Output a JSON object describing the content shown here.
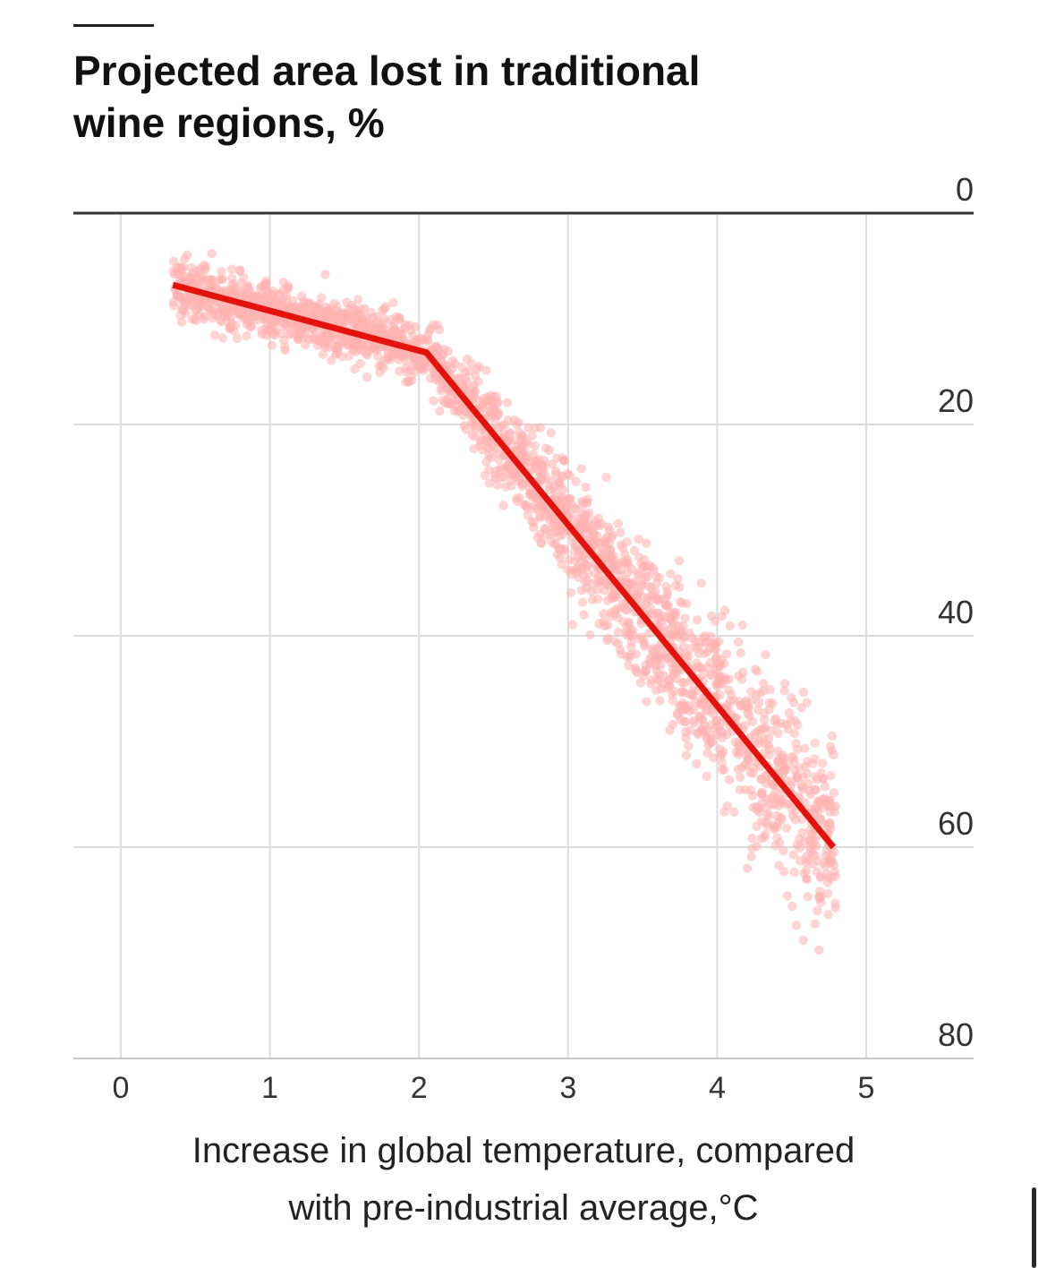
{
  "chart_data": {
    "type": "scatter",
    "title": "Projected area lost in traditional wine regions, %",
    "xlabel": "Increase in global temperature, compared with pre-industrial average,°C",
    "ylabel": "",
    "xlim": [
      -0.3,
      5.7
    ],
    "ylim": [
      0,
      80
    ],
    "y_axis": "inverted, labels on right",
    "xticks": [
      0,
      1,
      2,
      3,
      4,
      5
    ],
    "yticks": [
      0,
      20,
      40,
      60,
      80
    ],
    "grid": true,
    "series": [
      {
        "type": "line",
        "color": "#e3120b",
        "x": [
          0.35,
          2.05,
          4.78
        ],
        "y": [
          6.8,
          13.2,
          60.0
        ]
      },
      {
        "type": "scatter",
        "color": "#ffb3b0",
        "x": [
          0.5,
          0.9,
          1.3,
          1.7,
          2.0,
          2.3,
          2.6,
          3.0,
          3.3,
          3.6,
          4.0,
          4.3,
          4.6
        ],
        "y": [
          8,
          9,
          10,
          12,
          13,
          18,
          24,
          30,
          35,
          42,
          48,
          55,
          63
        ]
      }
    ]
  }
}
